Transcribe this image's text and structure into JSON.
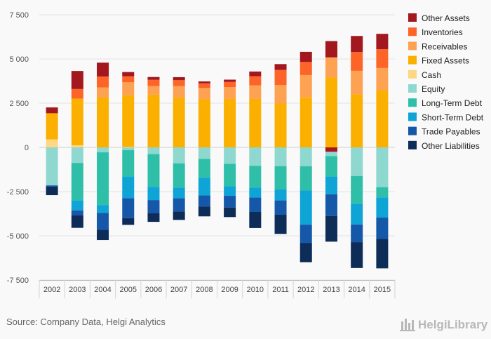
{
  "chart_data": {
    "type": "bar",
    "stacked": true,
    "categories": [
      "2002",
      "2003",
      "2004",
      "2005",
      "2006",
      "2007",
      "2008",
      "2009",
      "2010",
      "2011",
      "2012",
      "2013",
      "2014",
      "2015"
    ],
    "ylim": [
      -7500,
      7500
    ],
    "yticks": [
      7500,
      5000,
      2500,
      0,
      -2500,
      -5000,
      -7500
    ],
    "ytick_labels": [
      "7 500",
      "5 000",
      "2 500",
      "0",
      "-2 500",
      "-5 000",
      "-7 500"
    ],
    "grid": true,
    "legend_position": "right",
    "series": [
      {
        "name": "Other Assets",
        "color": "#a3171e",
        "side": "positive",
        "values": [
          330,
          1020,
          780,
          240,
          160,
          170,
          110,
          130,
          270,
          330,
          570,
          920,
          910,
          870
        ]
      },
      {
        "name": "Inventories",
        "color": "#fd6427",
        "side": "positive",
        "values": [
          0,
          540,
          620,
          340,
          350,
          330,
          260,
          290,
          510,
          860,
          740,
          0,
          1060,
          1060
        ]
      },
      {
        "name": "Receivables",
        "color": "#fda153",
        "side": "positive",
        "values": [
          0,
          0,
          570,
          730,
          490,
          650,
          640,
          670,
          770,
          1040,
          1260,
          1140,
          1330,
          1240
        ]
      },
      {
        "name": "Fixed Assets",
        "color": "#fbb000",
        "side": "positive",
        "values": [
          1480,
          2640,
          2820,
          2920,
          2980,
          2820,
          2720,
          2740,
          2740,
          2480,
          2830,
          3950,
          3000,
          3250
        ]
      },
      {
        "name": "Cash",
        "color": "#ffd683",
        "side": "positive",
        "values": [
          450,
          120,
          0,
          30,
          0,
          0,
          0,
          0,
          0,
          0,
          0,
          0,
          0,
          0
        ]
      },
      {
        "name": "Equity",
        "color": "#8ed8d0",
        "side": "negative",
        "values": [
          -2150,
          -880,
          -280,
          -150,
          -380,
          -900,
          -650,
          -930,
          -1040,
          -1060,
          -1060,
          -240,
          -1620,
          -2250
        ]
      },
      {
        "name": "Long-Term Debt",
        "color": "#2fbfa9",
        "side": "negative",
        "values": [
          0,
          -2120,
          -2980,
          -1500,
          -1850,
          -1370,
          -1070,
          -1270,
          -1230,
          -1320,
          -1380,
          -1160,
          -1570,
          -580
        ]
      },
      {
        "name": "Short-Term Debt",
        "color": "#0fa4d6",
        "side": "negative",
        "values": [
          0,
          -560,
          -450,
          -1220,
          -750,
          -610,
          -1000,
          -540,
          -570,
          -620,
          -1930,
          -1000,
          -1170,
          -1140
        ]
      },
      {
        "name": "Trade Payables",
        "color": "#1558a9",
        "side": "negative",
        "values": [
          -70,
          -290,
          -950,
          -1130,
          -750,
          -740,
          -620,
          -660,
          -810,
          -810,
          -1030,
          -1230,
          -1000,
          -1210
        ]
      },
      {
        "name": "Other Liabilities",
        "color": "#0d2c57",
        "side": "negative",
        "values": [
          -480,
          -700,
          -580,
          -380,
          -480,
          -480,
          -560,
          -540,
          -910,
          -1080,
          -1090,
          -1450,
          -1460,
          -1660
        ]
      }
    ],
    "extra_segments": [
      {
        "category": "2013",
        "name": "Other Assets",
        "color": "#a3171e",
        "value": -250,
        "note": "negative portion shown below zero"
      }
    ]
  },
  "footer": {
    "source": "Source: Company Data, Helgi Analytics",
    "brand": "HelgiLibrary"
  }
}
